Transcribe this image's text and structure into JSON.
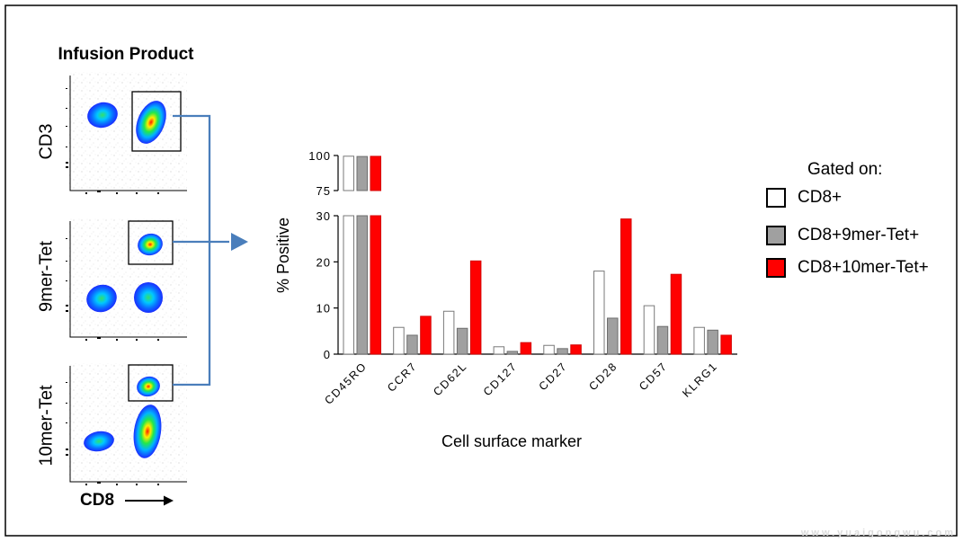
{
  "flow_cytometry": {
    "title": "Infusion Product",
    "x_label": "CD8",
    "panels": [
      {
        "y_label": "CD3"
      },
      {
        "y_label": "9mer-Tet"
      },
      {
        "y_label": "10mer-Tet"
      }
    ]
  },
  "legend": {
    "title": "Gated on:",
    "items": [
      {
        "label": "CD8+",
        "color": "#ffffff"
      },
      {
        "label": "CD8+9mer-Tet+",
        "color": "#a0a0a0"
      },
      {
        "label": "CD8+10mer-Tet+",
        "color": "#ff0000"
      }
    ]
  },
  "chart_data": {
    "type": "bar",
    "categories": [
      "CD45RO",
      "CCR7",
      "CD62L",
      "CD127",
      "CD27",
      "CD28",
      "CD57",
      "KLRG1"
    ],
    "series": [
      {
        "name": "CD8+",
        "color": "#ffffff",
        "values": [
          99.5,
          5.8,
          9.3,
          1.6,
          1.9,
          18.0,
          10.5,
          5.8
        ]
      },
      {
        "name": "CD8+9mer-Tet+",
        "color": "#a0a0a0",
        "values": [
          99.3,
          4.1,
          5.6,
          0.6,
          1.2,
          7.8,
          6.0,
          5.2
        ]
      },
      {
        "name": "CD8+10mer-Tet+",
        "color": "#ff0000",
        "values": [
          99.4,
          8.2,
          20.2,
          2.5,
          2.0,
          29.3,
          17.3,
          4.1
        ]
      }
    ],
    "xlabel": "Cell surface marker",
    "ylabel": "% Positive",
    "y_segments": [
      {
        "range": [
          0,
          30
        ],
        "ticks": [
          0,
          10,
          20,
          30
        ]
      },
      {
        "range": [
          75,
          100
        ],
        "ticks": [
          75,
          100
        ]
      }
    ]
  },
  "watermark": "www.yuaigongwu.com"
}
